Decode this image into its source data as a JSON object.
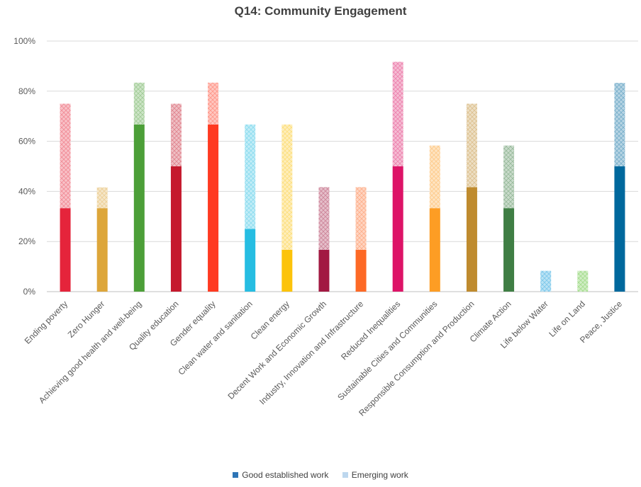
{
  "chart_data": {
    "type": "bar",
    "stacked": true,
    "title": "Q14: Community Engagement",
    "xlabel": "",
    "ylabel": "",
    "ylim": [
      0,
      100
    ],
    "yticks": [
      "0%",
      "20%",
      "40%",
      "60%",
      "80%",
      "100%"
    ],
    "grid": true,
    "legend_position": "bottom",
    "categories": [
      "Ending poverty",
      "Zero Hunger",
      "Achieving good health and well-being",
      "Quality education",
      "Gender equality",
      "Clean water and sanitation",
      "Clean energy",
      "Decent Work and Economic Growth",
      "Industry, Innovation and Infrastructure",
      "Reduced Inequalities",
      "Sustainable Cities and Communities",
      "Responsible Consumption and Production",
      "Climate Action",
      "Life below Water",
      "Life on Land",
      "Peace, Justice"
    ],
    "series": [
      {
        "name": "Good established work",
        "values": [
          33.3,
          33.3,
          66.7,
          50,
          66.7,
          25,
          16.7,
          16.7,
          16.7,
          50,
          33.3,
          41.7,
          33.3,
          0,
          0,
          50
        ]
      },
      {
        "name": "Emerging work",
        "values": [
          41.7,
          8.3,
          16.7,
          25,
          16.7,
          41.7,
          50,
          25,
          25,
          41.7,
          25,
          33.3,
          25,
          8.3,
          8.3,
          33.3
        ]
      }
    ],
    "colors": [
      "#E5243B",
      "#DDA63A",
      "#4C9F38",
      "#C5192D",
      "#FF3A21",
      "#26BDE2",
      "#FCC30B",
      "#A21942",
      "#FD6925",
      "#DD1367",
      "#FD9D24",
      "#BF8B2E",
      "#3F7E44",
      "#0A97D9",
      "#56C02B",
      "#00689D"
    ],
    "legend_colors": {
      "good": "#2E75B6",
      "emerging": "#BDD7EE"
    }
  }
}
